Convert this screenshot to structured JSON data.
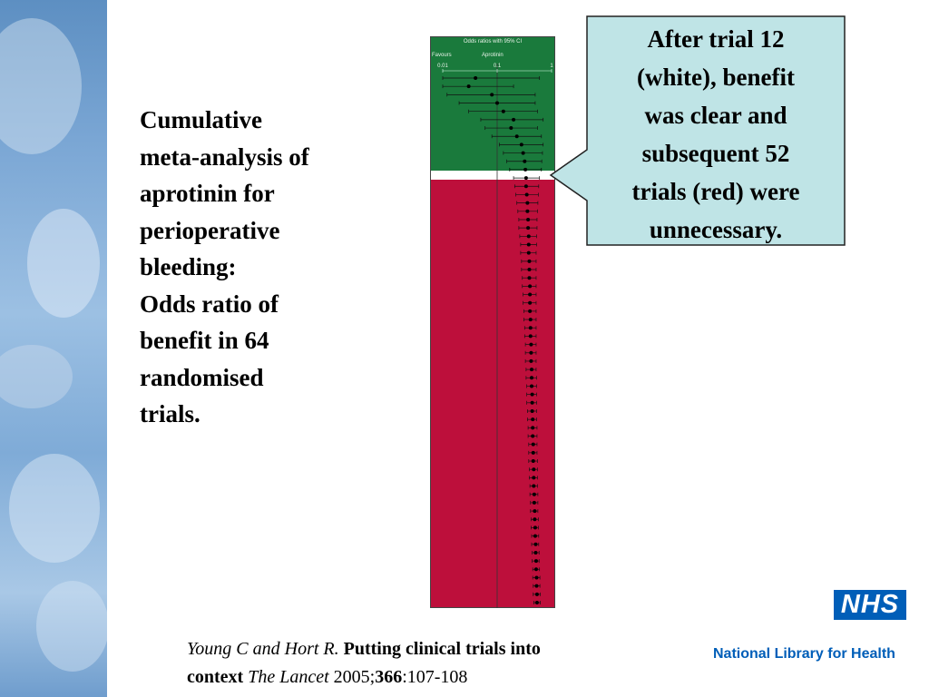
{
  "colors": {
    "green_zone": "#1a7a3c",
    "red_zone": "#bd0f3b",
    "callout_fill": "#bfe4e6",
    "nhs_blue": "#005eb8"
  },
  "left_strip": {
    "icon": "decorative-photo-collage"
  },
  "title": {
    "lines": [
      "Cumulative",
      "meta-analysis of",
      "aprotinin for",
      "perioperative",
      "bleeding:",
      "Odds ratio of",
      "benefit in 64",
      "randomised",
      "trials."
    ]
  },
  "callout": {
    "lines": [
      "After trial 12",
      "(white), benefit",
      "was clear and",
      "subsequent 52",
      "trials (red) were",
      "unnecessary."
    ]
  },
  "citation": {
    "authors": "Young C and Hort R.",
    "title_part1": "Putting clinical trials into",
    "title_part2": "context",
    "journal": "The Lancet",
    "year": "2005;",
    "volume": "366",
    "pages": ":107-108"
  },
  "nhs": {
    "logo_text": "NHS",
    "library_text": "National Library for Health"
  },
  "chart_data": {
    "type": "scatter",
    "title": "Odds ratios with 95% CI",
    "header_labels": [
      "Favours",
      "Aprotinin"
    ],
    "x_ticks": [
      "0.01",
      "0.1",
      "1"
    ],
    "x_scale": "log",
    "xlim": [
      0.01,
      1
    ],
    "zones": {
      "green_trials": 11,
      "white_trial": 12,
      "red_trials": 52
    },
    "series": [
      {
        "values": [
          {
            "trial": 1,
            "or": 0.04,
            "lo": 0.01,
            "hi": 0.6
          },
          {
            "trial": 2,
            "or": 0.03,
            "lo": 0.01,
            "hi": 0.2
          },
          {
            "trial": 3,
            "or": 0.08,
            "lo": 0.012,
            "hi": 0.5
          },
          {
            "trial": 4,
            "or": 0.1,
            "lo": 0.02,
            "hi": 0.5
          },
          {
            "trial": 5,
            "or": 0.13,
            "lo": 0.03,
            "hi": 0.55
          },
          {
            "trial": 6,
            "or": 0.2,
            "lo": 0.05,
            "hi": 0.7
          },
          {
            "trial": 7,
            "or": 0.18,
            "lo": 0.06,
            "hi": 0.55
          },
          {
            "trial": 8,
            "or": 0.23,
            "lo": 0.08,
            "hi": 0.65
          },
          {
            "trial": 9,
            "or": 0.28,
            "lo": 0.11,
            "hi": 0.7
          },
          {
            "trial": 10,
            "or": 0.3,
            "lo": 0.13,
            "hi": 0.68
          },
          {
            "trial": 11,
            "or": 0.32,
            "lo": 0.15,
            "hi": 0.66
          },
          {
            "trial": 12,
            "or": 0.33,
            "lo": 0.17,
            "hi": 0.65
          },
          {
            "trial": 13,
            "or": 0.34,
            "lo": 0.2,
            "hi": 0.6
          },
          {
            "trial": 14,
            "or": 0.34,
            "lo": 0.21,
            "hi": 0.58
          },
          {
            "trial": 15,
            "or": 0.35,
            "lo": 0.22,
            "hi": 0.57
          },
          {
            "trial": 16,
            "or": 0.36,
            "lo": 0.23,
            "hi": 0.56
          },
          {
            "trial": 17,
            "or": 0.36,
            "lo": 0.24,
            "hi": 0.55
          },
          {
            "trial": 18,
            "or": 0.37,
            "lo": 0.25,
            "hi": 0.54
          },
          {
            "trial": 19,
            "or": 0.37,
            "lo": 0.25,
            "hi": 0.54
          },
          {
            "trial": 20,
            "or": 0.38,
            "lo": 0.26,
            "hi": 0.53
          },
          {
            "trial": 21,
            "or": 0.38,
            "lo": 0.27,
            "hi": 0.53
          },
          {
            "trial": 22,
            "or": 0.38,
            "lo": 0.27,
            "hi": 0.52
          },
          {
            "trial": 23,
            "or": 0.39,
            "lo": 0.28,
            "hi": 0.52
          },
          {
            "trial": 24,
            "or": 0.39,
            "lo": 0.28,
            "hi": 0.52
          },
          {
            "trial": 25,
            "or": 0.39,
            "lo": 0.29,
            "hi": 0.52
          },
          {
            "trial": 26,
            "or": 0.4,
            "lo": 0.29,
            "hi": 0.52
          },
          {
            "trial": 27,
            "or": 0.4,
            "lo": 0.3,
            "hi": 0.52
          },
          {
            "trial": 28,
            "or": 0.4,
            "lo": 0.3,
            "hi": 0.52
          },
          {
            "trial": 29,
            "or": 0.4,
            "lo": 0.31,
            "hi": 0.52
          },
          {
            "trial": 30,
            "or": 0.41,
            "lo": 0.31,
            "hi": 0.52
          },
          {
            "trial": 31,
            "or": 0.41,
            "lo": 0.32,
            "hi": 0.52
          },
          {
            "trial": 32,
            "or": 0.41,
            "lo": 0.32,
            "hi": 0.52
          },
          {
            "trial": 33,
            "or": 0.42,
            "lo": 0.33,
            "hi": 0.52
          },
          {
            "trial": 34,
            "or": 0.42,
            "lo": 0.33,
            "hi": 0.52
          },
          {
            "trial": 35,
            "or": 0.42,
            "lo": 0.33,
            "hi": 0.52
          },
          {
            "trial": 36,
            "or": 0.43,
            "lo": 0.34,
            "hi": 0.52
          },
          {
            "trial": 37,
            "or": 0.43,
            "lo": 0.34,
            "hi": 0.53
          },
          {
            "trial": 38,
            "or": 0.43,
            "lo": 0.35,
            "hi": 0.53
          },
          {
            "trial": 39,
            "or": 0.44,
            "lo": 0.35,
            "hi": 0.53
          },
          {
            "trial": 40,
            "or": 0.44,
            "lo": 0.35,
            "hi": 0.53
          },
          {
            "trial": 41,
            "or": 0.44,
            "lo": 0.36,
            "hi": 0.53
          },
          {
            "trial": 42,
            "or": 0.45,
            "lo": 0.36,
            "hi": 0.53
          },
          {
            "trial": 43,
            "or": 0.45,
            "lo": 0.37,
            "hi": 0.54
          },
          {
            "trial": 44,
            "or": 0.45,
            "lo": 0.37,
            "hi": 0.54
          },
          {
            "trial": 45,
            "or": 0.46,
            "lo": 0.38,
            "hi": 0.54
          },
          {
            "trial": 46,
            "or": 0.46,
            "lo": 0.38,
            "hi": 0.54
          },
          {
            "trial": 47,
            "or": 0.46,
            "lo": 0.38,
            "hi": 0.55
          },
          {
            "trial": 48,
            "or": 0.47,
            "lo": 0.39,
            "hi": 0.55
          },
          {
            "trial": 49,
            "or": 0.47,
            "lo": 0.39,
            "hi": 0.55
          },
          {
            "trial": 50,
            "or": 0.47,
            "lo": 0.4,
            "hi": 0.55
          },
          {
            "trial": 51,
            "or": 0.48,
            "lo": 0.4,
            "hi": 0.56
          },
          {
            "trial": 52,
            "or": 0.48,
            "lo": 0.41,
            "hi": 0.56
          },
          {
            "trial": 53,
            "or": 0.49,
            "lo": 0.41,
            "hi": 0.56
          },
          {
            "trial": 54,
            "or": 0.49,
            "lo": 0.42,
            "hi": 0.57
          },
          {
            "trial": 55,
            "or": 0.5,
            "lo": 0.42,
            "hi": 0.57
          },
          {
            "trial": 56,
            "or": 0.5,
            "lo": 0.43,
            "hi": 0.58
          },
          {
            "trial": 57,
            "or": 0.51,
            "lo": 0.43,
            "hi": 0.58
          },
          {
            "trial": 58,
            "or": 0.51,
            "lo": 0.44,
            "hi": 0.59
          },
          {
            "trial": 59,
            "or": 0.52,
            "lo": 0.44,
            "hi": 0.59
          },
          {
            "trial": 60,
            "or": 0.52,
            "lo": 0.45,
            "hi": 0.6
          },
          {
            "trial": 61,
            "or": 0.53,
            "lo": 0.45,
            "hi": 0.61
          },
          {
            "trial": 62,
            "or": 0.53,
            "lo": 0.46,
            "hi": 0.61
          },
          {
            "trial": 63,
            "or": 0.54,
            "lo": 0.46,
            "hi": 0.62
          },
          {
            "trial": 64,
            "or": 0.54,
            "lo": 0.47,
            "hi": 0.62
          }
        ]
      }
    ]
  }
}
